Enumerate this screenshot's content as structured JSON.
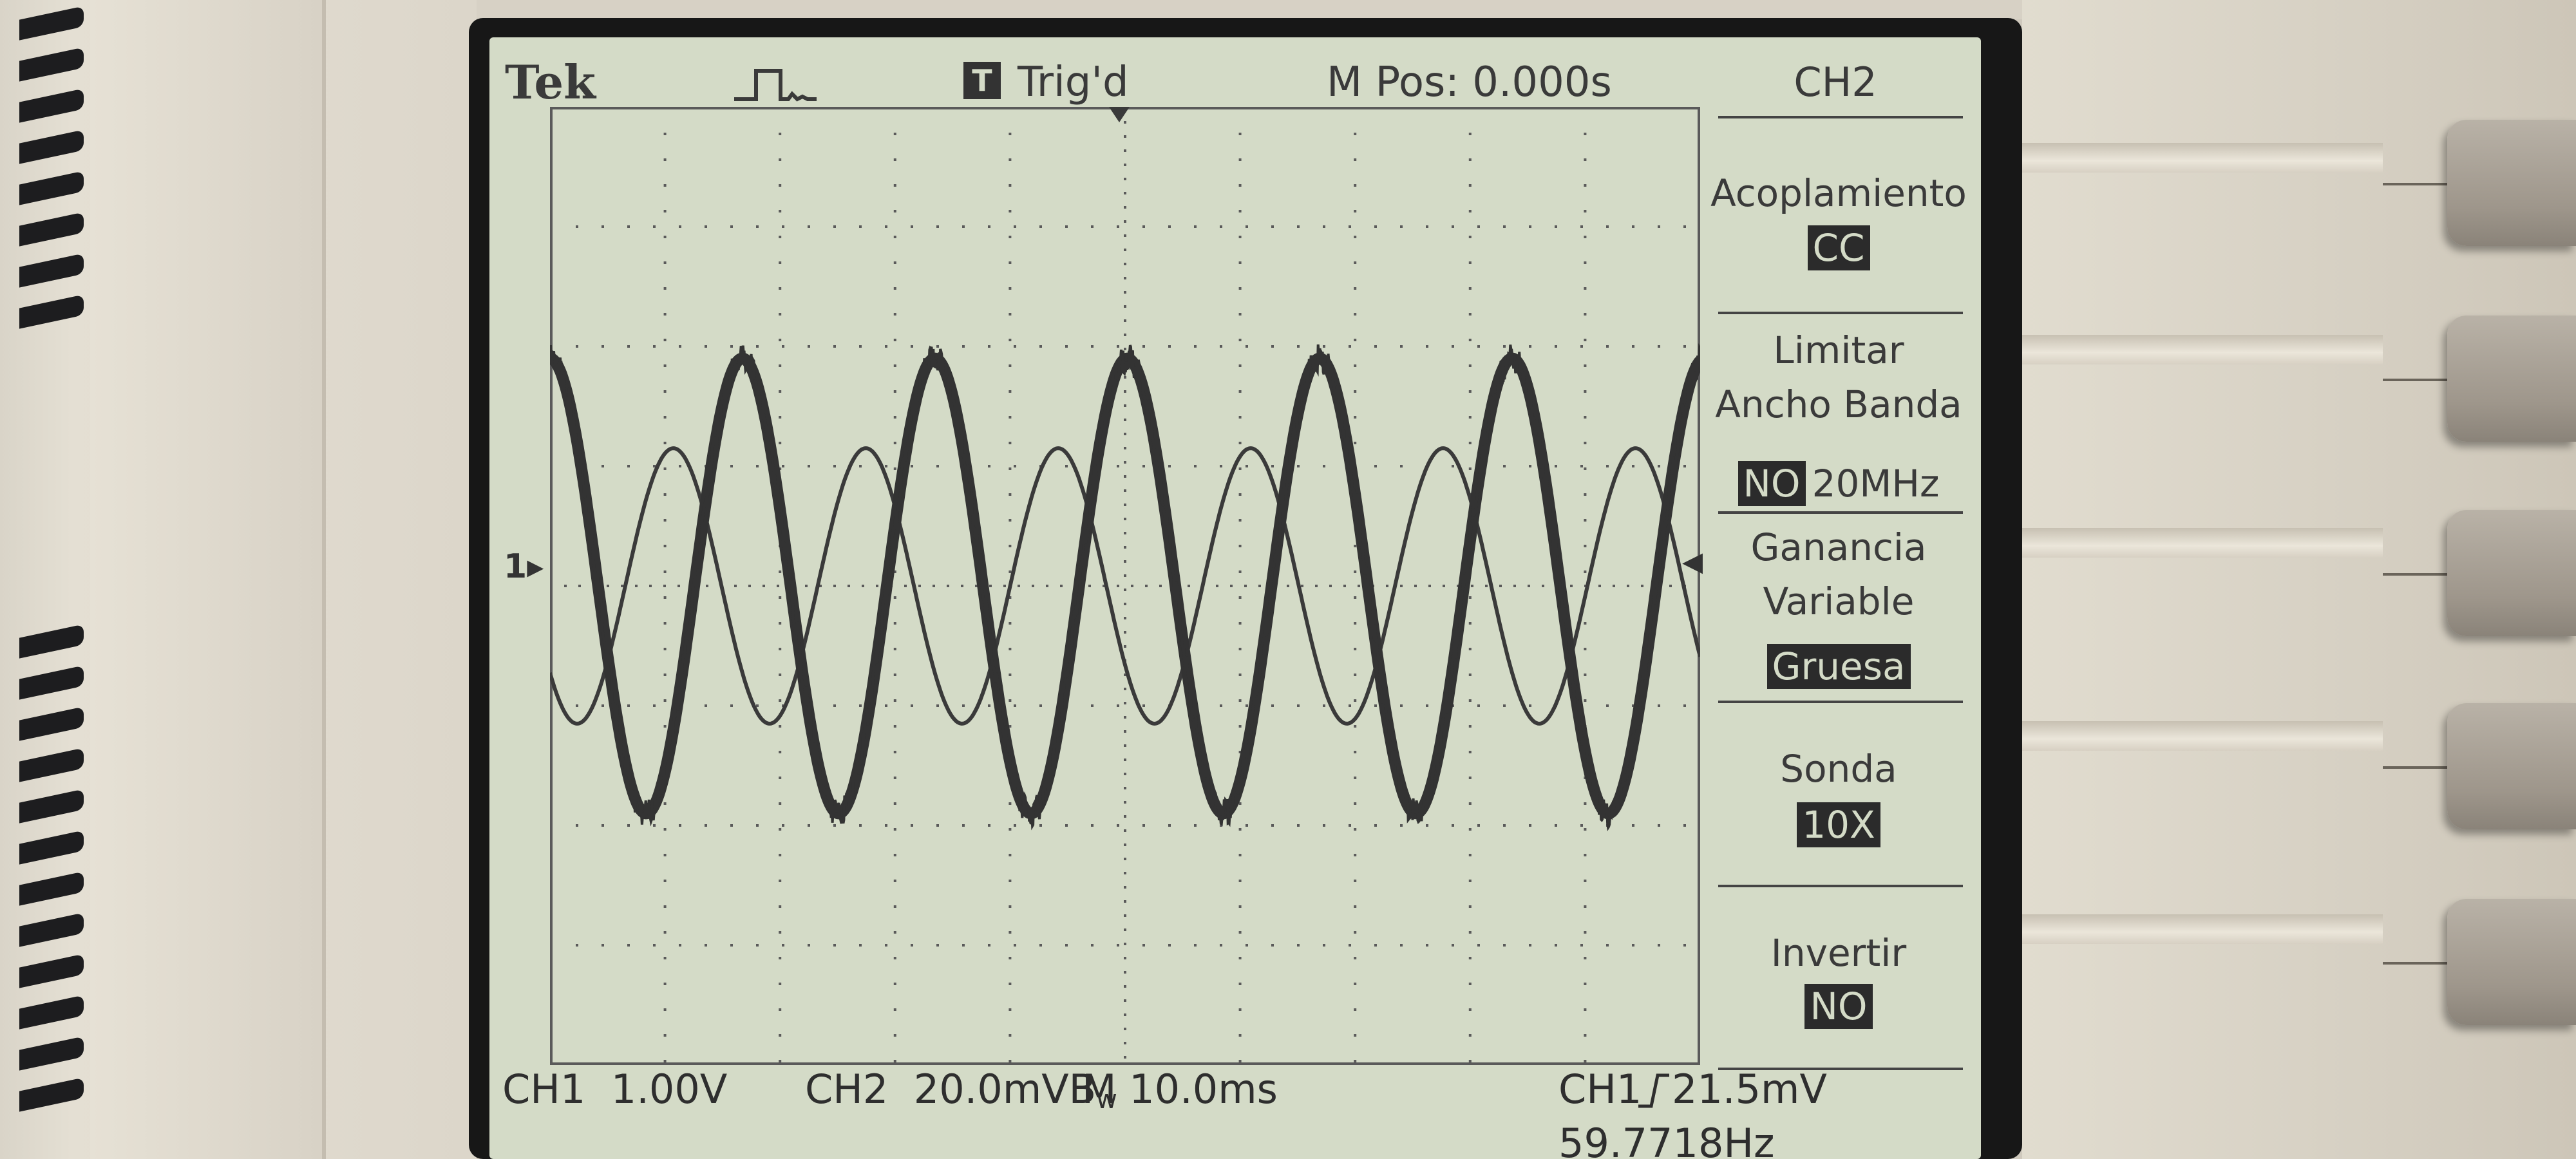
{
  "header": {
    "brand": "Tek",
    "acquire_icon": "pulse-waveform-icon",
    "trigger_badge": "T",
    "trigger_status": "Trig'd",
    "main_position": "M Pos: 0.000s"
  },
  "channel_markers": {
    "ch_ground_marker": "1",
    "trigger_level_marker": "◂"
  },
  "footer": {
    "ch1_scale": "CH1  1.00V",
    "ch2_scale": "CH2  20.0mVB",
    "bw_limit_mark": "w",
    "timebase": "M 10.0ms",
    "trigger_source": "CH1",
    "trigger_slope_icon": "rising-edge-icon",
    "trigger_level": "21.5mV",
    "frequency": "59.7718Hz"
  },
  "menu": {
    "title": "CH2",
    "items": [
      {
        "label": "Acoplamiento",
        "value": "CC"
      },
      {
        "label": "Limitar\nAncho Banda",
        "value": "NO",
        "value_extra": "20MHz"
      },
      {
        "label": "Ganancia\nVariable",
        "value": "Gruesa"
      },
      {
        "label": "Sonda",
        "value": "10X"
      },
      {
        "label": "Invertir",
        "value": "NO"
      }
    ]
  },
  "colors": {
    "lcd_background": "#d4dbc7",
    "trace": "#3a3a3a",
    "grid": "#5a5a5a",
    "bezel": "#dcd6ca"
  },
  "waveforms": {
    "frequency_hz": 59.7718,
    "ch1": {
      "phase_offset_div": 0.0,
      "peak_div": 1.9,
      "noisy": true
    },
    "ch2": {
      "phase_offset_div": 0.6,
      "peak_div": 1.15,
      "noisy": false
    }
  }
}
